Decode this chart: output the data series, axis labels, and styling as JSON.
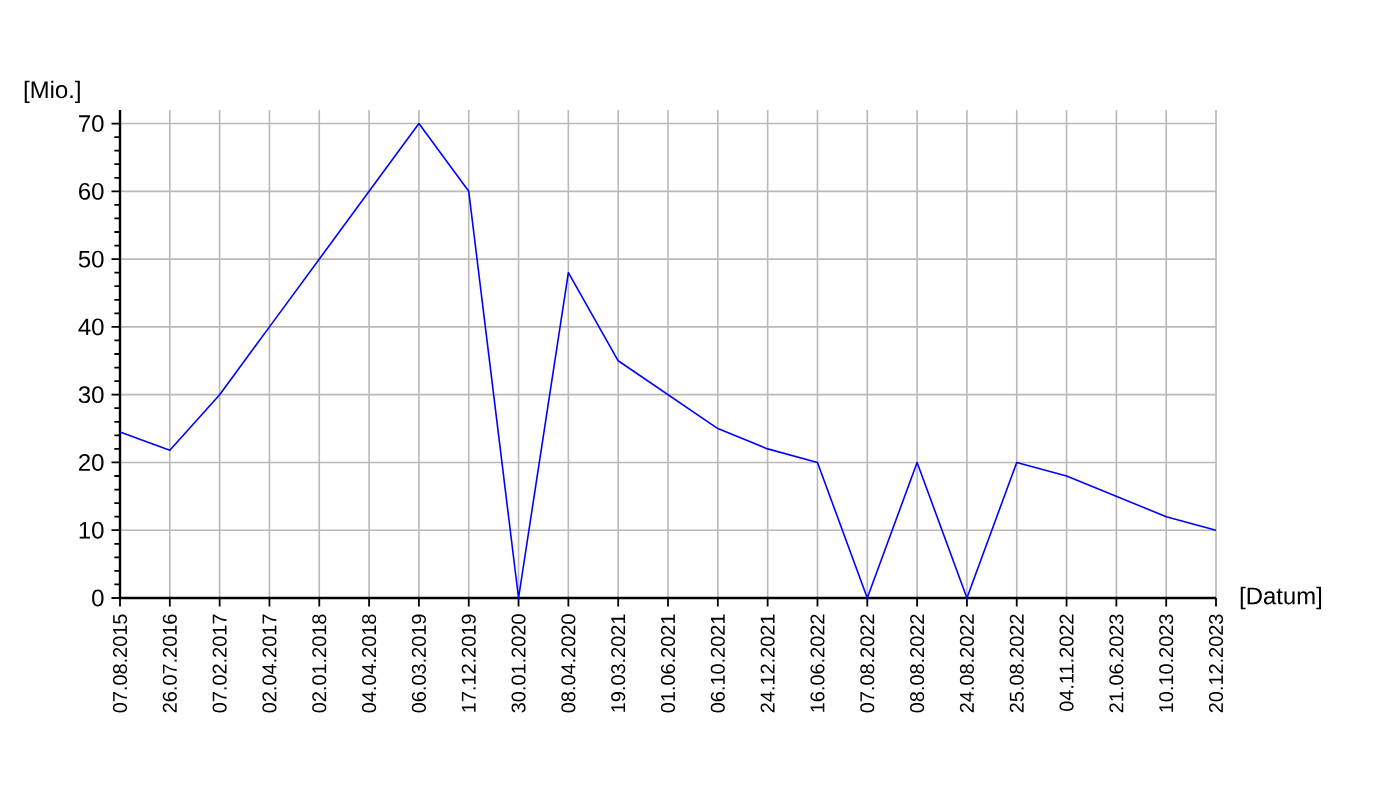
{
  "chart_data": {
    "type": "line",
    "xlabel": "[Datum]",
    "ylabel": "[Mio.]",
    "categories": [
      "07.08.2015",
      "26.07.2016",
      "07.02.2017",
      "02.04.2017",
      "02.01.2018",
      "04.04.2018",
      "06.03.2019",
      "17.12.2019",
      "30.01.2020",
      "08.04.2020",
      "19.03.2021",
      "01.06.2021",
      "06.10.2021",
      "24.12.2021",
      "16.06.2022",
      "07.08.2022",
      "08.08.2022",
      "24.08.2022",
      "25.08.2022",
      "04.11.2022",
      "21.06.2023",
      "10.10.2023",
      "20.12.2023"
    ],
    "values": [
      24.5,
      21.8,
      30,
      40,
      50,
      60,
      70,
      60,
      0,
      48,
      35,
      30,
      25,
      22,
      20,
      0,
      20,
      0,
      20,
      18,
      15,
      12,
      10
    ],
    "color": "#0000ff",
    "ylim": [
      0,
      72
    ],
    "yticks": [
      0,
      10,
      20,
      30,
      40,
      50,
      60,
      70
    ],
    "grid": true,
    "marker": "none",
    "line_style": "solid"
  }
}
